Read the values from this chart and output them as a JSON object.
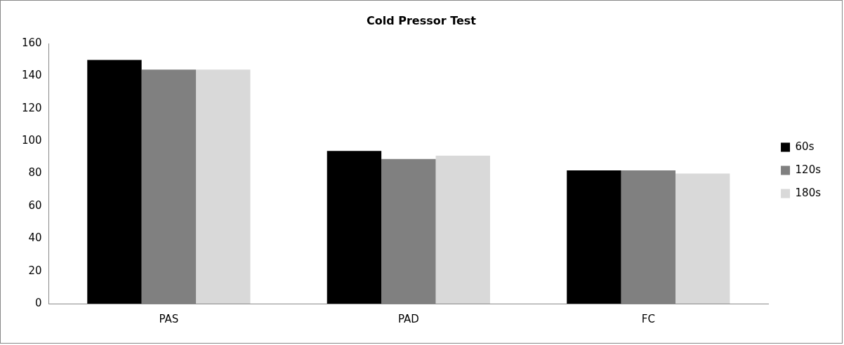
{
  "chart_data": {
    "type": "bar",
    "title": "Cold Pressor Test",
    "categories": [
      "PAS",
      "PAD",
      "FC"
    ],
    "series": [
      {
        "name": "60s",
        "color": "#000000",
        "values": [
          150,
          94,
          82
        ]
      },
      {
        "name": "120s",
        "color": "#808080",
        "values": [
          144,
          89,
          82
        ]
      },
      {
        "name": "180s",
        "color": "#d9d9d9",
        "values": [
          144,
          91,
          80
        ]
      }
    ],
    "ylim": [
      0,
      160
    ],
    "yticks": [
      0,
      20,
      40,
      60,
      80,
      100,
      120,
      140,
      160
    ],
    "grid": false,
    "legend": "right"
  }
}
